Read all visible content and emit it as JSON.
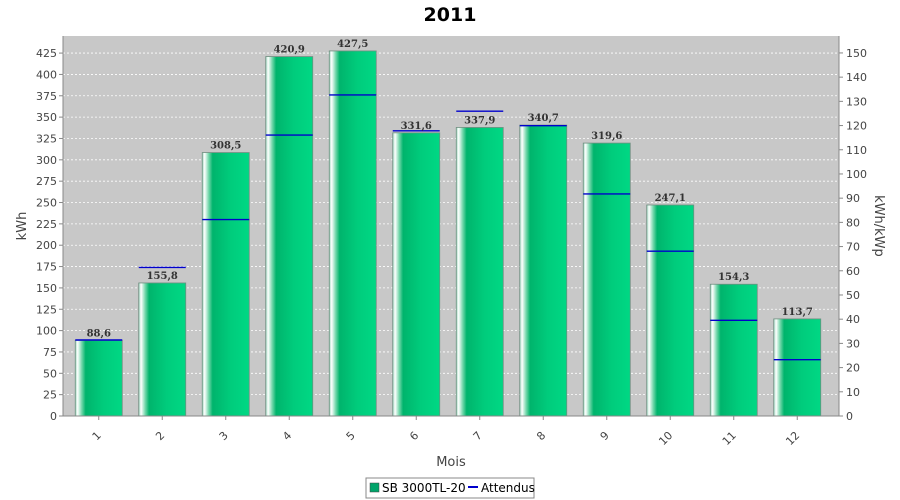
{
  "chart_data": {
    "type": "bar",
    "title": "2011",
    "xlabel": "Mois",
    "ylabel": "kWh",
    "y2label": "kWh/kWp",
    "categories": [
      "1",
      "2",
      "3",
      "4",
      "5",
      "6",
      "7",
      "8",
      "9",
      "10",
      "11",
      "12"
    ],
    "ylim": [
      0,
      445
    ],
    "y2lim": [
      0,
      157
    ],
    "yticks": [
      0,
      25,
      50,
      75,
      100,
      125,
      150,
      175,
      200,
      225,
      250,
      275,
      300,
      325,
      350,
      375,
      400,
      425
    ],
    "y2ticks": [
      0,
      10,
      20,
      30,
      40,
      50,
      60,
      70,
      80,
      90,
      100,
      110,
      120,
      130,
      140,
      150
    ],
    "series": [
      {
        "name": "SB 3000TL-20",
        "kind": "bar",
        "values": [
          88.6,
          155.8,
          308.5,
          420.9,
          427.5,
          331.6,
          337.9,
          340.7,
          319.6,
          247.1,
          154.3,
          113.7
        ],
        "labels": [
          "88,6",
          "155,8",
          "308,5",
          "420,9",
          "427,5",
          "331,6",
          "337,9",
          "340,7",
          "319,6",
          "247,1",
          "154,3",
          "113,7"
        ],
        "color": "#00c878"
      },
      {
        "name": "Attendus",
        "kind": "marker",
        "values": [
          89,
          174,
          230,
          329,
          376,
          334,
          357,
          340,
          260,
          193,
          112,
          66
        ],
        "color": "#0000cc"
      }
    ],
    "grid": true,
    "legend": "bottom-center",
    "plot_background": "#c8c8c8"
  }
}
